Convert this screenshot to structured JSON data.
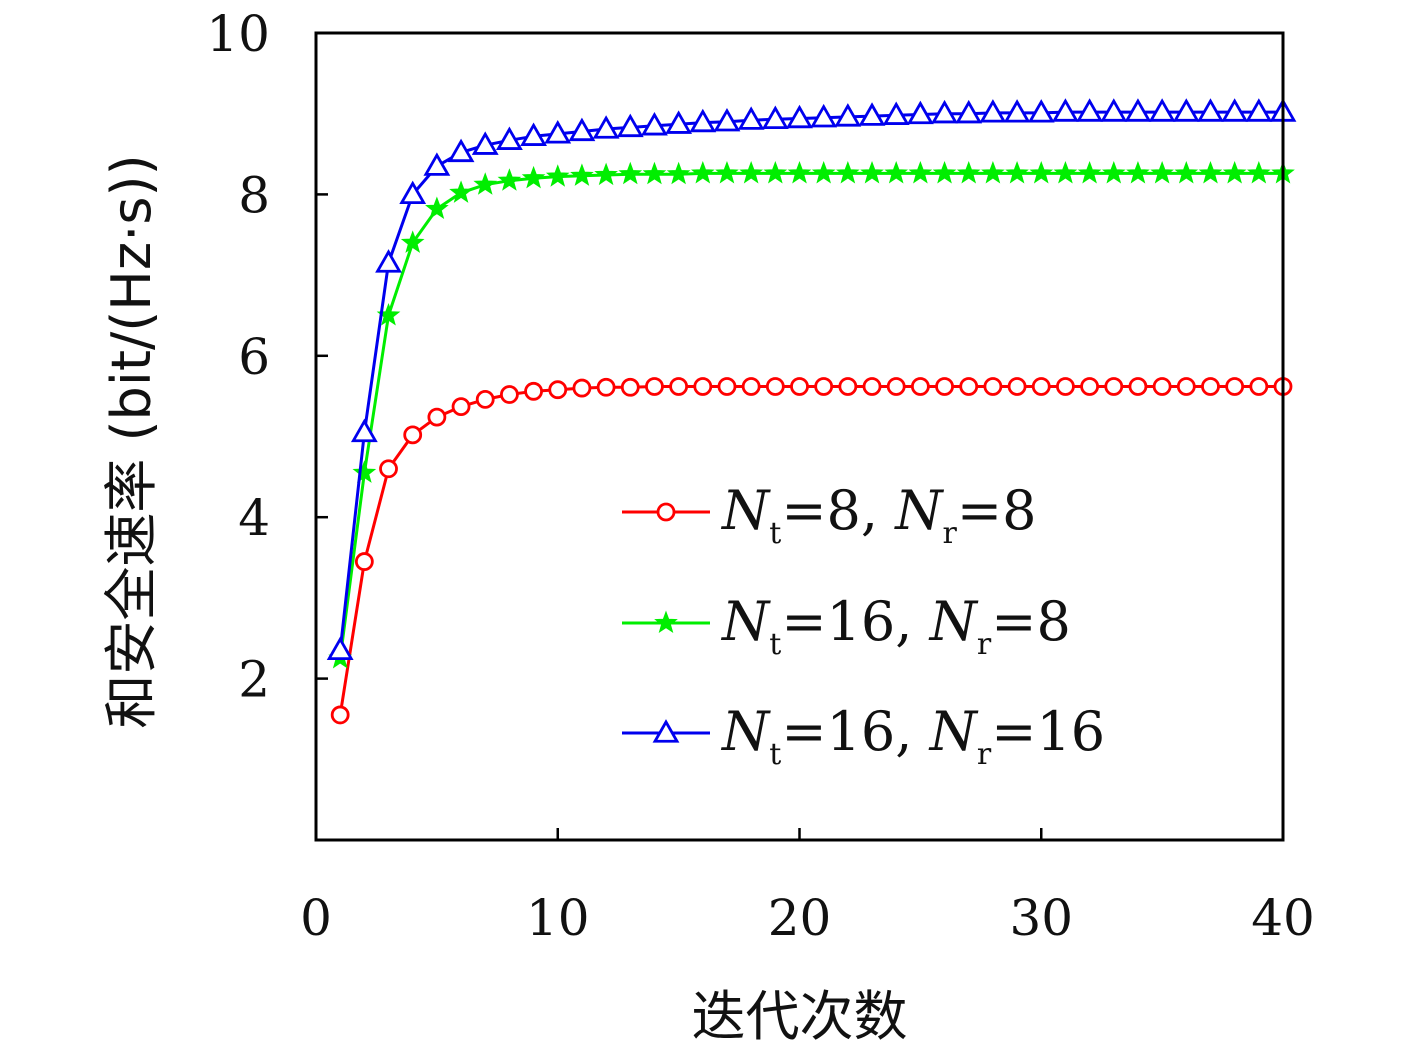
{
  "chart_data": {
    "type": "line",
    "xlabel": "迭代次数",
    "ylabel": "和安全速率 (bit/(Hz·s))",
    "xlim": [
      0,
      40
    ],
    "ylim": [
      0,
      10
    ],
    "x_ticks": [
      0,
      10,
      20,
      30,
      40
    ],
    "y_ticks": [
      2,
      4,
      6,
      8,
      10
    ],
    "grid": false,
    "legend_position": "center-right",
    "x": [
      1,
      2,
      3,
      4,
      5,
      6,
      7,
      8,
      9,
      10,
      11,
      12,
      13,
      14,
      15,
      16,
      17,
      18,
      19,
      20,
      21,
      22,
      23,
      24,
      25,
      26,
      27,
      28,
      29,
      30,
      31,
      32,
      33,
      34,
      35,
      36,
      37,
      38,
      39,
      40
    ],
    "series": [
      {
        "name": "Nt=8, Nr=8",
        "legend": {
          "n1": "N",
          "sub1": "t",
          "mid": "=8, ",
          "n2": "N",
          "sub2": "r",
          "end": "=8"
        },
        "color": "#ff0000",
        "marker": "circle",
        "values": [
          1.55,
          3.45,
          4.6,
          5.02,
          5.24,
          5.37,
          5.46,
          5.52,
          5.56,
          5.58,
          5.6,
          5.61,
          5.61,
          5.62,
          5.62,
          5.62,
          5.62,
          5.62,
          5.62,
          5.62,
          5.62,
          5.62,
          5.62,
          5.62,
          5.62,
          5.62,
          5.62,
          5.62,
          5.62,
          5.62,
          5.62,
          5.62,
          5.62,
          5.62,
          5.62,
          5.62,
          5.62,
          5.62,
          5.62,
          5.62
        ]
      },
      {
        "name": "Nt=16, Nr=8",
        "legend": {
          "n1": "N",
          "sub1": "t",
          "mid": "=16, ",
          "n2": "N",
          "sub2": "r",
          "end": "=8"
        },
        "color": "#00ee00",
        "marker": "star",
        "values": [
          2.25,
          4.55,
          6.5,
          7.4,
          7.82,
          8.02,
          8.12,
          8.17,
          8.2,
          8.22,
          8.23,
          8.24,
          8.25,
          8.25,
          8.25,
          8.26,
          8.26,
          8.26,
          8.26,
          8.26,
          8.26,
          8.26,
          8.26,
          8.26,
          8.26,
          8.26,
          8.26,
          8.26,
          8.26,
          8.26,
          8.26,
          8.26,
          8.26,
          8.26,
          8.26,
          8.26,
          8.26,
          8.26,
          8.26,
          8.26
        ]
      },
      {
        "name": "Nt=16, Nr=16",
        "legend": {
          "n1": "N",
          "sub1": "t",
          "mid": "=16, ",
          "n2": "N",
          "sub2": "r",
          "end": "=16"
        },
        "color": "#0000ee",
        "marker": "triangle",
        "values": [
          2.35,
          5.05,
          7.15,
          8.0,
          8.35,
          8.52,
          8.61,
          8.67,
          8.72,
          8.75,
          8.78,
          8.81,
          8.83,
          8.85,
          8.87,
          8.89,
          8.9,
          8.92,
          8.93,
          8.94,
          8.95,
          8.96,
          8.97,
          8.98,
          8.99,
          9.0,
          9.0,
          9.01,
          9.01,
          9.01,
          9.02,
          9.02,
          9.02,
          9.02,
          9.02,
          9.02,
          9.02,
          9.02,
          9.02,
          9.02
        ]
      }
    ]
  }
}
